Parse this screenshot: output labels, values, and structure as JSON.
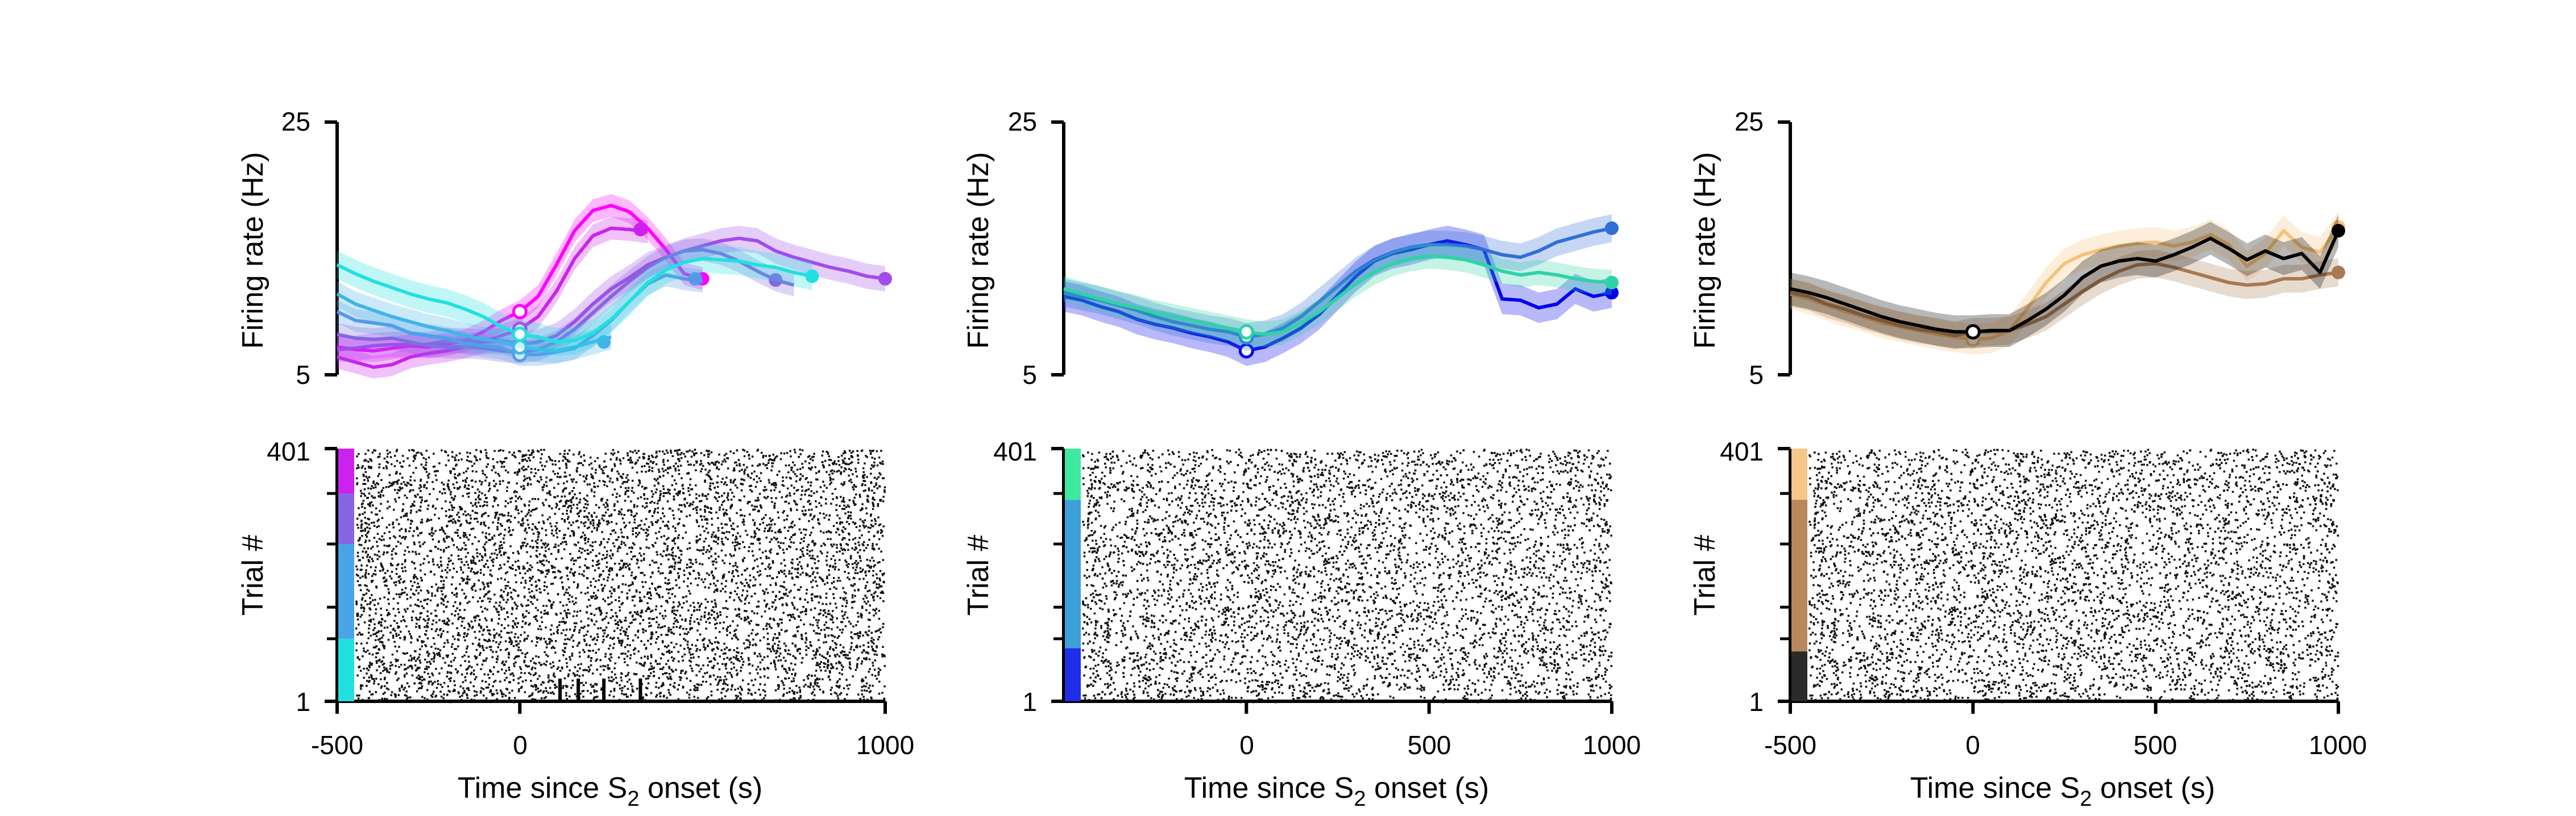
{
  "chart_data": [
    {
      "type": "line",
      "panel": "top-left",
      "ylabel": "Firing rate (Hz)",
      "ylim": [
        5,
        25
      ],
      "xlim": [
        -500,
        1000
      ],
      "yticks": [
        "25",
        "5"
      ],
      "grid": false,
      "shaded_error_bands": true,
      "series": [
        {
          "color": "#ff00ff",
          "x": [
            -500,
            -450,
            -400,
            -350,
            -300,
            -250,
            -200,
            -150,
            -100,
            -50,
            0,
            50,
            100,
            150,
            200,
            250,
            300,
            350,
            400,
            450,
            500
          ],
          "y": [
            7.2,
            7,
            6.9,
            7.1,
            7.3,
            7.2,
            7.4,
            7.7,
            8.4,
            9.3,
            10,
            11.2,
            13.7,
            16.4,
            18,
            18.4,
            17.9,
            16.6,
            14.9,
            13,
            12.6
          ],
          "band": 0.9,
          "end_x": 500,
          "marker_at_zero": 10
        },
        {
          "color": "#cc22ee",
          "x": [
            -500,
            -450,
            -400,
            -350,
            -300,
            -250,
            -200,
            -150,
            -100,
            -50,
            0,
            50,
            100,
            150,
            200,
            250,
            300,
            350
          ],
          "y": [
            6.4,
            6,
            5.6,
            5.8,
            6.4,
            6.7,
            6.9,
            7.2,
            7.6,
            8.1,
            8.6,
            9.6,
            11.6,
            14.2,
            16,
            16.6,
            16.5,
            16.3
          ],
          "band": 0.9,
          "end_x": 330,
          "marker_at_zero": 8.6
        },
        {
          "color": "#a24cec",
          "x": [
            -500,
            -450,
            -400,
            -350,
            -300,
            -250,
            -200,
            -150,
            -100,
            -50,
            0,
            50,
            100,
            150,
            200,
            250,
            300,
            350,
            400,
            450,
            500,
            550,
            600,
            650,
            700,
            750,
            800,
            850,
            900,
            950,
            1000
          ],
          "y": [
            7,
            7.1,
            7.3,
            7.4,
            7.4,
            7.4,
            7.7,
            7.7,
            7.6,
            7.7,
            7.4,
            7.6,
            8.1,
            9.2,
            10.6,
            11.8,
            12.7,
            13.7,
            14.3,
            14.8,
            15.2,
            15.6,
            15.8,
            15.6,
            14.8,
            14.3,
            13.9,
            13.5,
            13.2,
            12.8,
            12.6
          ],
          "band": 1.0,
          "end_x": 1000,
          "marker_at_zero": 7.4
        },
        {
          "color": "#8566e0",
          "x": [
            -500,
            -450,
            -400,
            -350,
            -300,
            -250,
            -200,
            -150,
            -100,
            -50,
            0,
            50,
            100,
            150,
            200,
            250,
            300,
            350,
            400,
            450,
            500,
            550,
            600,
            650,
            700,
            750
          ],
          "y": [
            8.2,
            7.9,
            7.8,
            7.9,
            7.6,
            7.3,
            7.2,
            7.2,
            7.1,
            6.9,
            6.8,
            7,
            7.6,
            8.6,
            9.9,
            11.2,
            12.4,
            13.5,
            14.3,
            14.8,
            14.9,
            14.6,
            14,
            13.2,
            12.5,
            12.1
          ],
          "band": 0.9,
          "end_x": 700,
          "marker_at_zero": 6.8
        },
        {
          "color": "#5599e6",
          "x": [
            -500,
            -450,
            -400,
            -350,
            -300,
            -250,
            -200,
            -150,
            -100,
            -50,
            0,
            50,
            100,
            150,
            200,
            250,
            300,
            350,
            400,
            450,
            500
          ],
          "y": [
            10,
            9.3,
            9.1,
            8.9,
            8.3,
            8.1,
            7.9,
            7.5,
            7.3,
            7.1,
            6.6,
            6.6,
            6.8,
            7.1,
            8.1,
            9.3,
            10.8,
            12.2,
            12.9,
            12.6,
            12.4
          ],
          "band": 0.9,
          "end_x": 480,
          "marker_at_zero": 6.6
        },
        {
          "color": "#41b4e8",
          "x": [
            -500,
            -450,
            -400,
            -350,
            -300,
            -250,
            -200,
            -150,
            -100,
            -50,
            0,
            50,
            100,
            150,
            200,
            250
          ],
          "y": [
            11.4,
            10.6,
            10.1,
            9.6,
            9.2,
            8.8,
            8.5,
            8.1,
            7.8,
            7.6,
            7.2,
            7,
            6.9,
            7.2,
            7.6,
            8
          ],
          "band": 1.0,
          "end_x": 230,
          "marker_at_zero": 7.2
        },
        {
          "color": "#22e0e0",
          "x": [
            -500,
            -450,
            -400,
            -350,
            -300,
            -250,
            -200,
            -150,
            -100,
            -50,
            0,
            50,
            100,
            150,
            200,
            250,
            300,
            350,
            400,
            450,
            500,
            550,
            600,
            650,
            700,
            750,
            800
          ],
          "y": [
            13.7,
            13,
            12.4,
            11.9,
            11.4,
            11,
            10.7,
            10.2,
            9.6,
            8.8,
            8.2,
            8,
            7.6,
            7.7,
            8.3,
            9.4,
            10.8,
            12.3,
            13.3,
            13.9,
            14.2,
            14.1,
            14,
            13.7,
            13.5,
            13.1,
            12.8
          ],
          "band": 1.1,
          "end_x": 800,
          "marker_at_zero": 8.2
        }
      ],
      "stimulus_ticks_x": [
        110,
        160,
        230,
        330
      ]
    },
    {
      "type": "raster",
      "panel": "bottom-left",
      "ylabel": "Trial #",
      "xlabel_parts": [
        "Time since S",
        "2",
        " onset (s)"
      ],
      "xlim": [
        -500,
        1000
      ],
      "xticks": [
        "-500",
        "0",
        "1000"
      ],
      "ylim": [
        1,
        401
      ],
      "yticks": [
        "1",
        "401"
      ],
      "color_bar": [
        {
          "from": 1,
          "to": 100,
          "color": "#22e0e0"
        },
        {
          "from": 100,
          "to": 250,
          "color": "#4aa4e6"
        },
        {
          "from": 250,
          "to": 330,
          "color": "#8566e0"
        },
        {
          "from": 330,
          "to": 401,
          "color": "#cc22ee"
        }
      ]
    },
    {
      "type": "line",
      "panel": "top-middle",
      "ylabel": "Firing rate (Hz)",
      "ylim": [
        5,
        25
      ],
      "xlim": [
        -500,
        1000
      ],
      "yticks": [
        "25",
        "5"
      ],
      "grid": false,
      "shaded_error_bands": true,
      "series": [
        {
          "color": "#0000ee",
          "x": [
            -500,
            -450,
            -400,
            -350,
            -300,
            -250,
            -200,
            -150,
            -100,
            -50,
            0,
            50,
            100,
            150,
            200,
            250,
            300,
            350,
            400,
            450,
            500,
            550,
            600,
            650,
            700,
            750,
            800,
            850,
            900,
            950,
            1000
          ],
          "y": [
            11.2,
            10.9,
            10.4,
            10,
            9.4,
            9,
            8.7,
            8.3,
            8,
            7.6,
            6.9,
            7.2,
            7.9,
            8.7,
            9.8,
            11.3,
            12.8,
            14,
            14.6,
            14.9,
            15.3,
            15.6,
            15.3,
            14.9,
            11,
            10.9,
            10.3,
            10.6,
            11.8,
            11.2,
            11.5
          ],
          "band": 1.2,
          "end_x": 1000,
          "marker_at_zero": 6.9
        },
        {
          "color": "#2f6fd8",
          "x": [
            -500,
            -450,
            -400,
            -350,
            -300,
            -250,
            -200,
            -150,
            -100,
            -50,
            0,
            50,
            100,
            150,
            200,
            250,
            300,
            350,
            400,
            450,
            500,
            550,
            600,
            650,
            700,
            750,
            800,
            850,
            900,
            950,
            1000
          ],
          "y": [
            11.5,
            11.2,
            10.9,
            10.5,
            10.1,
            9.6,
            9.2,
            8.9,
            8.6,
            8.4,
            8,
            8.2,
            8.7,
            9.6,
            10.8,
            12,
            13.2,
            14.1,
            14.7,
            15.1,
            15.3,
            15.3,
            15.2,
            14.9,
            14.5,
            14.3,
            14.8,
            15.5,
            15.9,
            16.3,
            16.6
          ],
          "band": 1.1,
          "end_x": 1000,
          "marker_at_zero": 8
        },
        {
          "color": "#2ed3a5",
          "x": [
            -500,
            -450,
            -400,
            -350,
            -300,
            -250,
            -200,
            -150,
            -100,
            -50,
            0,
            50,
            100,
            150,
            200,
            250,
            300,
            350,
            400,
            450,
            500,
            550,
            600,
            650,
            700,
            750,
            800,
            850,
            900,
            950,
            1000
          ],
          "y": [
            11.8,
            11.4,
            11,
            10.6,
            10.3,
            9.9,
            9.6,
            9.3,
            9,
            8.7,
            8.4,
            8.2,
            8.4,
            9.1,
            10,
            11.1,
            12.2,
            13.1,
            13.8,
            14.2,
            14.4,
            14.3,
            14.1,
            13.7,
            13.2,
            12.9,
            13.1,
            12.9,
            12.6,
            12.4,
            12.3
          ],
          "band": 1.0,
          "end_x": 1000,
          "marker_at_zero": 8.4
        }
      ]
    },
    {
      "type": "raster",
      "panel": "bottom-middle",
      "ylabel": "Trial #",
      "xlabel_parts": [
        "Time since S",
        "2",
        " onset (s)"
      ],
      "xlim": [
        -500,
        1000
      ],
      "xticks": [
        "0",
        "500",
        "1000"
      ],
      "ylim": [
        1,
        401
      ],
      "yticks": [
        "1",
        "401"
      ],
      "color_bar": [
        {
          "from": 1,
          "to": 85,
          "color": "#1e2de8"
        },
        {
          "from": 85,
          "to": 320,
          "color": "#3ea0d8"
        },
        {
          "from": 320,
          "to": 401,
          "color": "#3deaa0"
        }
      ]
    },
    {
      "type": "line",
      "panel": "top-right",
      "ylabel": "Firing rate (Hz)",
      "ylim": [
        5,
        25
      ],
      "xlim": [
        -500,
        1000
      ],
      "yticks": [
        "25",
        "5"
      ],
      "grid": false,
      "shaded_error_bands": true,
      "series": [
        {
          "color": "#f6c17a",
          "x": [
            -500,
            -450,
            -400,
            -350,
            -300,
            -250,
            -200,
            -150,
            -100,
            -50,
            0,
            50,
            100,
            150,
            200,
            250,
            300,
            350,
            400,
            450,
            500,
            550,
            600,
            650,
            700,
            750,
            800,
            850,
            900,
            950,
            1000
          ],
          "y": [
            11.4,
            11,
            10.5,
            10,
            9.6,
            9.1,
            8.8,
            8.5,
            8.2,
            8,
            7.8,
            7.9,
            8.5,
            10.3,
            12.3,
            13.8,
            14.5,
            14.9,
            15.2,
            15.4,
            15.5,
            15.2,
            15.5,
            16.1,
            15.3,
            13.6,
            14.6,
            16.4,
            15.1,
            14.7,
            16.7
          ],
          "band": 1.2,
          "end_x": 1000,
          "marker_at_zero": 7.8
        },
        {
          "color": "#a87a52",
          "x": [
            -500,
            -450,
            -400,
            -350,
            -300,
            -250,
            -200,
            -150,
            -100,
            -50,
            0,
            50,
            100,
            150,
            200,
            250,
            300,
            350,
            400,
            450,
            500,
            550,
            600,
            650,
            700,
            750,
            800,
            850,
            900,
            950,
            1000
          ],
          "y": [
            11.5,
            11.2,
            10.6,
            10.2,
            9.7,
            9.3,
            8.9,
            8.6,
            8.4,
            8.1,
            8.4,
            8.4,
            8.5,
            9,
            9.6,
            10.6,
            11.6,
            12.5,
            13.2,
            13.7,
            13.8,
            13.5,
            13.1,
            12.7,
            12.3,
            12.1,
            12.2,
            12.6,
            12.6,
            12.9,
            13.1
          ],
          "band": 1.1,
          "end_x": 1000,
          "marker_at_zero": 8.4
        },
        {
          "color": "#000000",
          "x": [
            -500,
            -450,
            -400,
            -350,
            -300,
            -250,
            -200,
            -150,
            -100,
            -50,
            0,
            50,
            100,
            150,
            200,
            250,
            300,
            350,
            400,
            450,
            500,
            550,
            600,
            650,
            700,
            750,
            800,
            850,
            900,
            950,
            1000
          ],
          "y": [
            11.8,
            11.5,
            11.1,
            10.6,
            10.1,
            9.6,
            9.2,
            8.9,
            8.6,
            8.4,
            8.4,
            8.5,
            8.5,
            9.3,
            10.2,
            11.3,
            12.7,
            13.6,
            14,
            14.2,
            14,
            14.5,
            15.1,
            15.8,
            15,
            14.1,
            14.8,
            14.2,
            14.6,
            13.1,
            16.4
          ],
          "band": 1.3,
          "end_x": 1000,
          "marker_at_zero": 8.4
        }
      ]
    },
    {
      "type": "raster",
      "panel": "bottom-right",
      "ylabel": "Trial #",
      "xlabel_parts": [
        "Time since S",
        "2",
        " onset (s)"
      ],
      "xlim": [
        -500,
        1000
      ],
      "xticks": [
        "-500",
        "0",
        "500",
        "1000"
      ],
      "ylim": [
        1,
        401
      ],
      "yticks": [
        "1",
        "401"
      ],
      "color_bar": [
        {
          "from": 1,
          "to": 80,
          "color": "#2a2a2a"
        },
        {
          "from": 80,
          "to": 320,
          "color": "#b8875c"
        },
        {
          "from": 320,
          "to": 401,
          "color": "#f6c68a"
        }
      ]
    }
  ]
}
